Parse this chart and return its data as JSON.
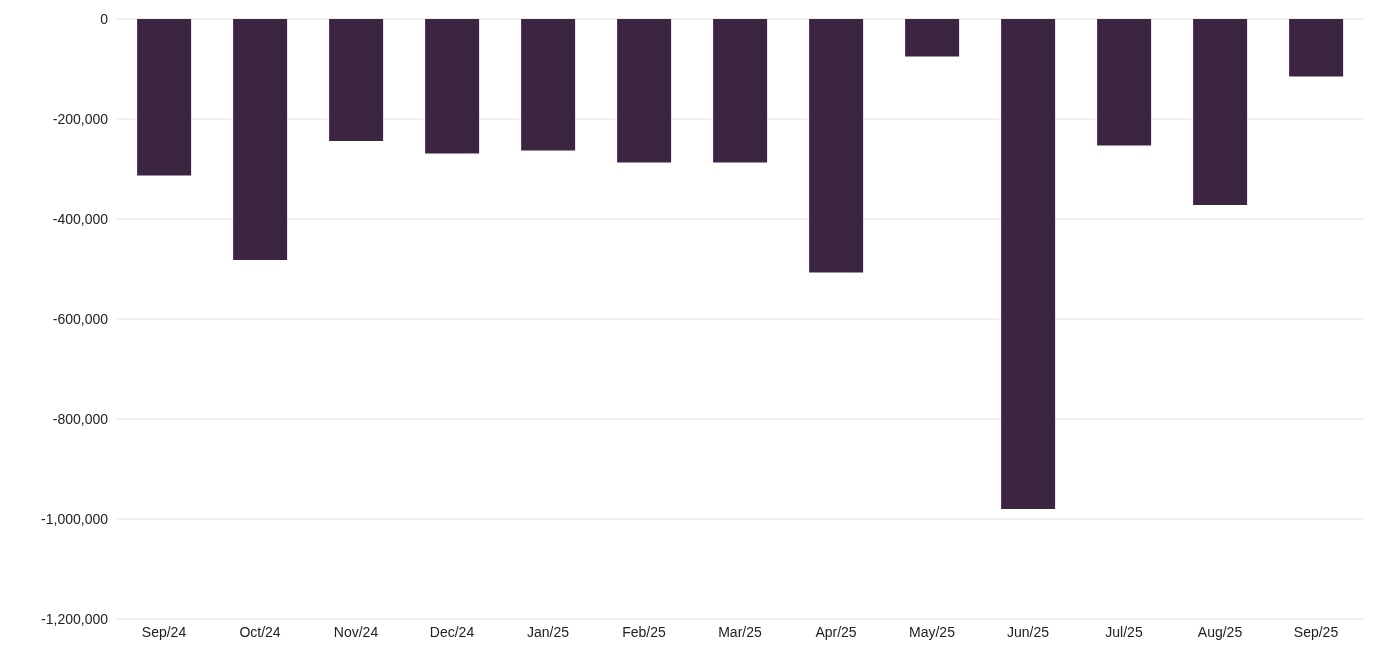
{
  "chart_data": {
    "type": "bar",
    "categories": [
      "Sep/24",
      "Oct/24",
      "Nov/24",
      "Dec/24",
      "Jan/25",
      "Feb/25",
      "Mar/25",
      "Apr/25",
      "May/25",
      "Jun/25",
      "Jul/25",
      "Aug/25",
      "Sep/25"
    ],
    "values": [
      -313000,
      -482000,
      -244000,
      -269000,
      -263000,
      -287000,
      -287000,
      -507000,
      -75000,
      -980000,
      -253000,
      -372000,
      -115000
    ],
    "color": "#3c2541",
    "ylim": [
      -1200000,
      0
    ],
    "yticks": [
      {
        "value": -1200000,
        "label": "-1,200,000"
      },
      {
        "value": -1000000,
        "label": "-1,000,000"
      },
      {
        "value": -800000,
        "label": "-800,000"
      },
      {
        "value": -600000,
        "label": "-600,000"
      },
      {
        "value": -400000,
        "label": "-400,000"
      },
      {
        "value": -200000,
        "label": "-200,000"
      },
      0
    ],
    "grid": "y"
  }
}
